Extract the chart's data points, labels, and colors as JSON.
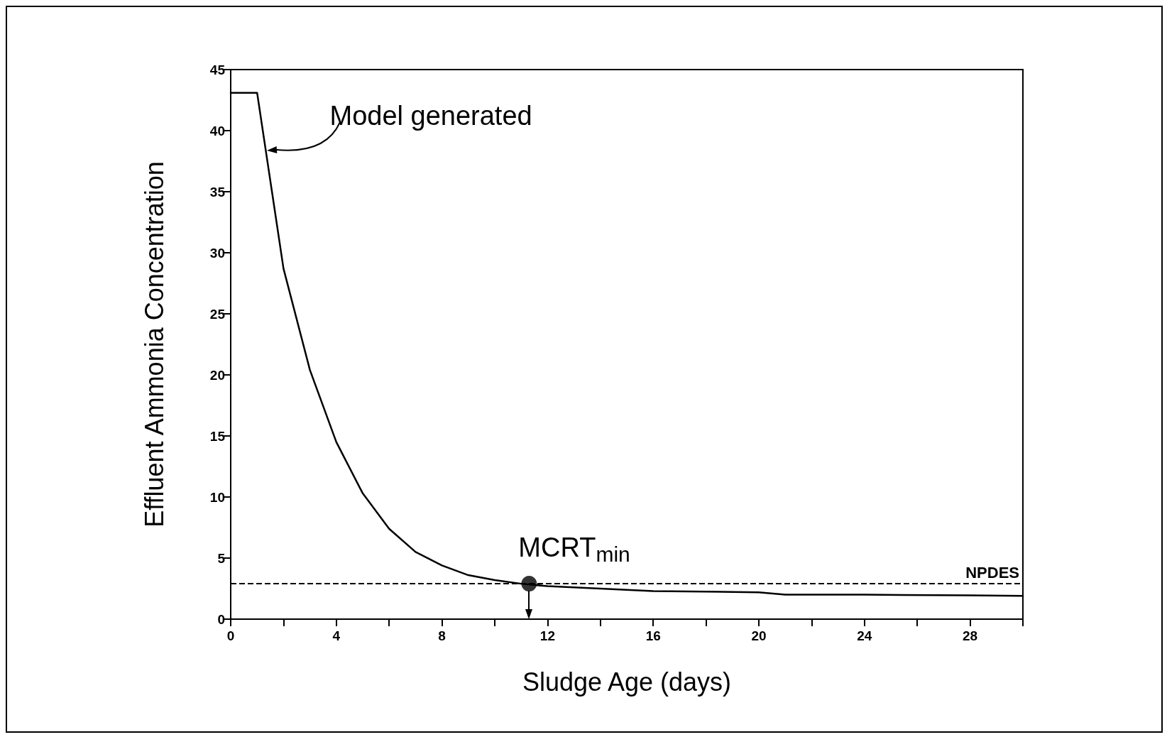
{
  "chart_data": {
    "type": "line",
    "xlabel": "Sludge Age (days)",
    "ylabel": "Effluent Ammonia Concentration",
    "x": [
      0,
      1,
      2,
      3,
      4,
      5,
      6,
      7,
      8,
      9,
      10,
      11,
      12,
      14,
      16,
      18,
      20,
      21,
      24,
      28,
      30
    ],
    "series": [
      {
        "color": "#000000",
        "values": [
          43.1,
          43.1,
          28.7,
          20.4,
          14.5,
          10.3,
          7.4,
          5.5,
          4.4,
          3.6,
          3.2,
          2.9,
          2.7,
          2.5,
          2.3,
          2.25,
          2.2,
          2.0,
          2.0,
          1.95,
          1.9
        ]
      },
      {
        "type": "scatter",
        "color": "#000000",
        "x": [
          11.3
        ],
        "values": [
          2.9
        ]
      }
    ],
    "xlim": [
      0,
      30
    ],
    "ylim": [
      0,
      45
    ],
    "xticks": [
      0,
      {
        "value": 2,
        "label": null
      },
      4,
      {
        "value": 6,
        "label": null
      },
      8,
      {
        "value": 10,
        "label": null
      },
      12,
      {
        "value": 14,
        "label": null
      },
      16,
      {
        "value": 18,
        "label": null
      },
      20,
      {
        "value": 22,
        "label": null
      },
      24,
      {
        "value": 26,
        "label": null
      },
      28,
      {
        "value": 30,
        "label": null
      }
    ],
    "yticks": [
      0,
      5,
      10,
      15,
      20,
      25,
      30,
      35,
      40,
      45
    ],
    "ref_lines": [
      {
        "axis": "y",
        "value": 2.9,
        "label": "NPDES",
        "line_style": "dashed",
        "color": "#000000"
      }
    ],
    "annotations": [
      "Model generated",
      {
        "text": "MCRT$_{min}$",
        "x": 11.3,
        "y": 2.9
      }
    ],
    "grid": false,
    "line_style": "solid"
  }
}
